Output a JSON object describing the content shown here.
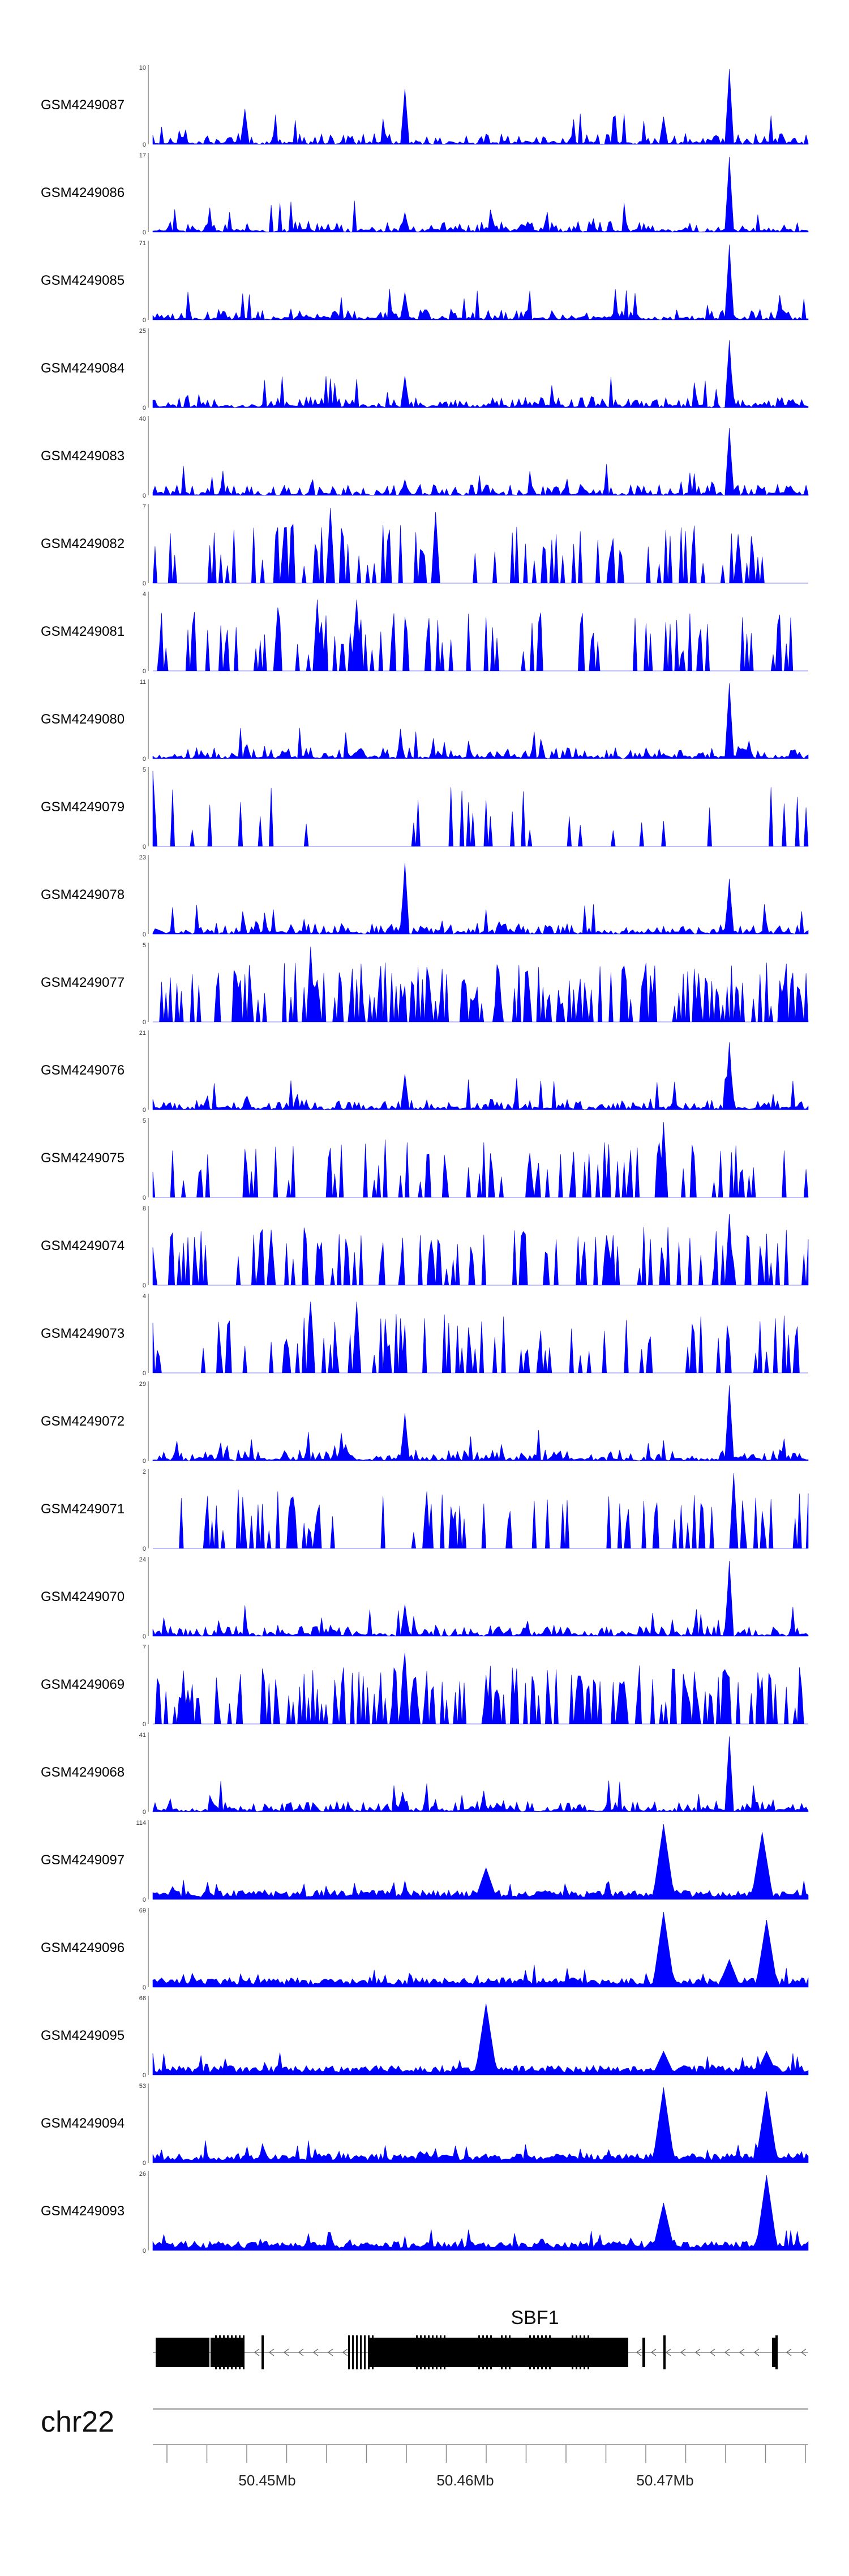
{
  "chart_data": {
    "type": "area",
    "color": "#0000ff",
    "tracks": [
      {
        "name": "GSM4249087",
        "ymax": 10,
        "pattern": "sparse-fill",
        "peaks": [
          {
            "pos": 0.383,
            "h": 0.7
          },
          {
            "pos": 0.88,
            "h": 0.95
          },
          {
            "pos": 0.14,
            "h": 0.45
          },
          {
            "pos": 0.78,
            "h": 0.35
          }
        ]
      },
      {
        "name": "GSM4249086",
        "ymax": 17,
        "pattern": "sparse-fill",
        "peaks": [
          {
            "pos": 0.88,
            "h": 0.95
          },
          {
            "pos": 0.383,
            "h": 0.25
          }
        ]
      },
      {
        "name": "GSM4249085",
        "ymax": 71,
        "pattern": "sparse-fill",
        "peaks": [
          {
            "pos": 0.88,
            "h": 0.95
          },
          {
            "pos": 0.383,
            "h": 0.35
          }
        ]
      },
      {
        "name": "GSM4249084",
        "ymax": 25,
        "pattern": "sparse-fill",
        "peaks": [
          {
            "pos": 0.88,
            "h": 0.85
          },
          {
            "pos": 0.383,
            "h": 0.4
          }
        ]
      },
      {
        "name": "GSM4249083",
        "ymax": 40,
        "pattern": "sparse-fill",
        "peaks": [
          {
            "pos": 0.88,
            "h": 0.85
          },
          {
            "pos": 0.383,
            "h": 0.2
          }
        ]
      },
      {
        "name": "GSM4249082",
        "ymax": 7,
        "pattern": "triangles",
        "peaks": [
          {
            "pos": 0.27,
            "h": 0.95
          },
          {
            "pos": 0.43,
            "h": 0.9
          },
          {
            "pos": 0.2,
            "h": 0.7
          }
        ]
      },
      {
        "name": "GSM4249081",
        "ymax": 4,
        "pattern": "triangles",
        "peaks": [
          {
            "pos": 0.25,
            "h": 0.9
          },
          {
            "pos": 0.31,
            "h": 0.9
          },
          {
            "pos": 0.19,
            "h": 0.8
          }
        ]
      },
      {
        "name": "GSM4249080",
        "ymax": 11,
        "pattern": "sparse-fill",
        "peaks": [
          {
            "pos": 0.88,
            "h": 0.95
          }
        ]
      },
      {
        "name": "GSM4249079",
        "ymax": 5,
        "pattern": "triangles-sparse",
        "peaks": [
          {
            "pos": 0.0,
            "h": 0.95
          }
        ]
      },
      {
        "name": "GSM4249078",
        "ymax": 23,
        "pattern": "sparse-fill",
        "peaks": [
          {
            "pos": 0.383,
            "h": 0.9
          },
          {
            "pos": 0.88,
            "h": 0.7
          }
        ]
      },
      {
        "name": "GSM4249077",
        "ymax": 5,
        "pattern": "triangles-dense",
        "peaks": [
          {
            "pos": 0.24,
            "h": 0.95
          }
        ]
      },
      {
        "name": "GSM4249076",
        "ymax": 21,
        "pattern": "sparse-fill",
        "peaks": [
          {
            "pos": 0.88,
            "h": 0.85
          },
          {
            "pos": 0.383,
            "h": 0.45
          }
        ]
      },
      {
        "name": "GSM4249075",
        "ymax": 5,
        "pattern": "triangles",
        "peaks": [
          {
            "pos": 0.78,
            "h": 0.95
          }
        ]
      },
      {
        "name": "GSM4249074",
        "ymax": 8,
        "pattern": "triangles",
        "peaks": [
          {
            "pos": 0.88,
            "h": 0.9
          },
          {
            "pos": 0.18,
            "h": 0.7
          }
        ]
      },
      {
        "name": "GSM4249073",
        "ymax": 4,
        "pattern": "triangles",
        "peaks": [
          {
            "pos": 0.24,
            "h": 0.9
          },
          {
            "pos": 0.31,
            "h": 0.9
          }
        ]
      },
      {
        "name": "GSM4249072",
        "ymax": 29,
        "pattern": "sparse-fill",
        "peaks": [
          {
            "pos": 0.88,
            "h": 0.95
          },
          {
            "pos": 0.383,
            "h": 0.6
          }
        ]
      },
      {
        "name": "GSM4249071",
        "ymax": 2,
        "pattern": "triangles",
        "peaks": [
          {
            "pos": 0.885,
            "h": 0.95
          }
        ]
      },
      {
        "name": "GSM4249070",
        "ymax": 24,
        "pattern": "sparse-fill",
        "peaks": [
          {
            "pos": 0.88,
            "h": 0.95
          },
          {
            "pos": 0.383,
            "h": 0.4
          }
        ]
      },
      {
        "name": "GSM4249069",
        "ymax": 7,
        "pattern": "triangles-dense",
        "peaks": [
          {
            "pos": 0.383,
            "h": 0.9
          }
        ]
      },
      {
        "name": "GSM4249068",
        "ymax": 41,
        "pattern": "sparse-fill",
        "peaks": [
          {
            "pos": 0.88,
            "h": 0.95
          },
          {
            "pos": 0.38,
            "h": 0.25
          }
        ]
      },
      {
        "name": "GSM4249097",
        "ymax": 114,
        "pattern": "signal",
        "peaks": [
          {
            "pos": 0.78,
            "h": 0.95
          },
          {
            "pos": 0.93,
            "h": 0.85
          },
          {
            "pos": 0.51,
            "h": 0.4
          }
        ]
      },
      {
        "name": "GSM4249096",
        "ymax": 69,
        "pattern": "signal",
        "peaks": [
          {
            "pos": 0.78,
            "h": 0.95
          },
          {
            "pos": 0.935,
            "h": 0.85
          },
          {
            "pos": 0.88,
            "h": 0.35
          }
        ]
      },
      {
        "name": "GSM4249095",
        "ymax": 66,
        "pattern": "signal",
        "peaks": [
          {
            "pos": 0.51,
            "h": 0.9
          },
          {
            "pos": 0.78,
            "h": 0.3
          },
          {
            "pos": 0.935,
            "h": 0.3
          }
        ]
      },
      {
        "name": "GSM4249094",
        "ymax": 53,
        "pattern": "signal",
        "peaks": [
          {
            "pos": 0.78,
            "h": 0.95
          },
          {
            "pos": 0.935,
            "h": 0.9
          }
        ]
      },
      {
        "name": "GSM4249093",
        "ymax": 26,
        "pattern": "signal",
        "peaks": [
          {
            "pos": 0.935,
            "h": 0.95
          },
          {
            "pos": 0.78,
            "h": 0.6
          }
        ]
      }
    ],
    "gene": {
      "name": "SBF1",
      "chromosome": "chr22"
    },
    "x_axis": {
      "ticks": [
        "50.45Mb",
        "50.46Mb",
        "50.47Mb"
      ]
    }
  }
}
